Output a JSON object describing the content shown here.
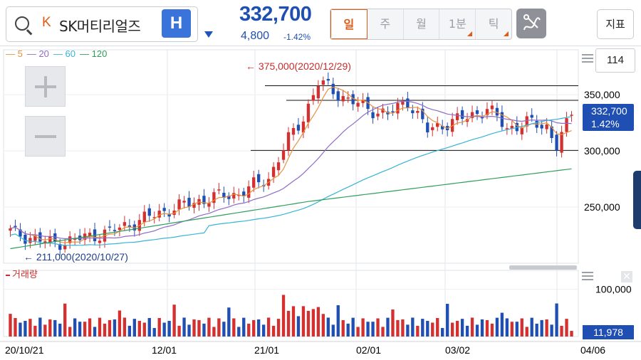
{
  "search": {
    "market_badge": "K",
    "stock_name": "SK머티리얼즈"
  },
  "header": {
    "h_button_label": "H",
    "price": "332,700",
    "change_abs": "4,800",
    "change_pct": "-1.42%",
    "indicator_button": "지표"
  },
  "period_tabs": [
    {
      "label": "일",
      "active": true,
      "has_corner": false
    },
    {
      "label": "주",
      "active": false,
      "has_corner": false
    },
    {
      "label": "월",
      "active": false,
      "has_corner": false
    },
    {
      "label": "1분",
      "active": false,
      "has_corner": true
    },
    {
      "label": "틱",
      "active": false,
      "has_corner": true
    }
  ],
  "legend": [
    {
      "label": "5",
      "color": "#e8913c"
    },
    {
      "label": "20",
      "color": "#8f6bc8"
    },
    {
      "label": "60",
      "color": "#37b4d6"
    },
    {
      "label": "120",
      "color": "#2f9e5a"
    }
  ],
  "candle_count": "114",
  "price_axis": [
    "350,000",
    "300,000",
    "250,000"
  ],
  "price_tag": {
    "price": "332,700",
    "pct": "1.42%"
  },
  "volume_axis": [
    "100,000"
  ],
  "volume_tag": "11,978",
  "volume_label": "거래량",
  "annotations": {
    "high": "375,000(2020/12/29)",
    "low": "211,000(2020/10/27)"
  },
  "x_ticks": [
    "20/10/21",
    "12/01",
    "21/01",
    "02/01",
    "03/02",
    "04/06"
  ],
  "icons": {
    "search": "search-icon",
    "draw": "draw-tool-icon",
    "menu": "menu-icon",
    "close": "close-icon"
  },
  "colors": {
    "up": "#d4302f",
    "down": "#1f4fb3",
    "accent": "#e05a16",
    "price_blue": "#1f4fb3"
  },
  "chart_data": {
    "type": "candlestick",
    "y_range": [
      200000,
      390000
    ],
    "volume_range": [
      0,
      140000
    ],
    "series_ma": [
      "5",
      "20",
      "60",
      "120"
    ],
    "high_marker": {
      "date": "2020/12/29",
      "value": 375000
    },
    "low_marker": {
      "date": "2020/10/27",
      "value": 211000
    },
    "last_close": 332700,
    "last_volume": 11978,
    "x_ticks": [
      "20/10/21",
      "12/01",
      "21/01",
      "02/01",
      "03/02",
      "04/06"
    ]
  }
}
